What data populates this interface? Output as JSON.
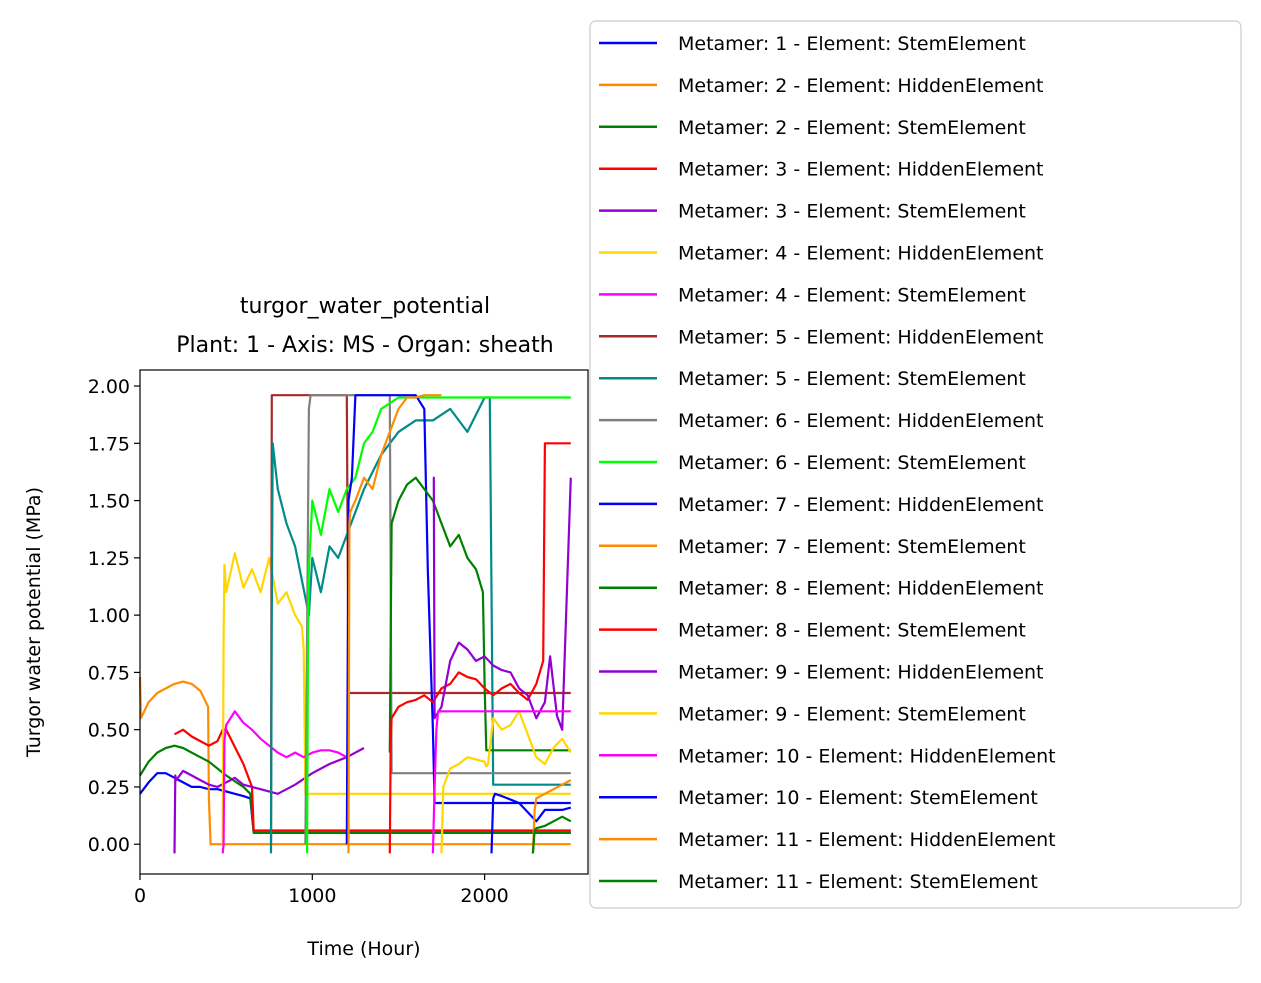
{
  "chart_data": {
    "type": "line",
    "title": "turgor_water_potential",
    "subtitle": "Plant: 1 - Axis: MS - Organ: sheath",
    "xlabel": "Time (Hour)",
    "ylabel": "Turgor water potential (MPa)",
    "xlim": [
      0,
      2600
    ],
    "ylim": [
      -0.13,
      2.07
    ],
    "xticks": [
      "0",
      "1000",
      "2000"
    ],
    "xtick_values": [
      0,
      1000,
      2000
    ],
    "yticks": [
      "0.00",
      "0.25",
      "0.50",
      "0.75",
      "1.00",
      "1.25",
      "1.50",
      "1.75",
      "2.00"
    ],
    "ytick_values": [
      0,
      0.25,
      0.5,
      0.75,
      1.0,
      1.25,
      1.5,
      1.75,
      2.0
    ],
    "grid": false,
    "legend_position": "right-outside",
    "series": [
      {
        "name": "Metamer: 1 - Element: StemElement",
        "color": "#0000ff",
        "x": [
          0,
          50,
          100,
          150,
          200,
          250,
          300,
          350,
          400,
          450,
          500,
          550,
          600,
          640,
          660,
          700,
          2500
        ],
        "y": [
          0.22,
          0.27,
          0.31,
          0.31,
          0.29,
          0.27,
          0.25,
          0.25,
          0.24,
          0.24,
          0.23,
          0.22,
          0.21,
          0.2,
          0.05,
          0.05,
          0.05
        ]
      },
      {
        "name": "Metamer: 2 - Element: HiddenElement",
        "color": "#ff8c00",
        "x": [
          0,
          5,
          50,
          100,
          150,
          200,
          250,
          300,
          350,
          395,
          400,
          410,
          2500
        ],
        "y": [
          0.73,
          0.55,
          0.62,
          0.66,
          0.68,
          0.7,
          0.71,
          0.7,
          0.67,
          0.6,
          0.2,
          0.0,
          0.0
        ]
      },
      {
        "name": "Metamer: 2 - Element: StemElement",
        "color": "#008000",
        "x": [
          0,
          50,
          100,
          150,
          200,
          250,
          300,
          350,
          400,
          500,
          600,
          640,
          660,
          2500
        ],
        "y": [
          0.3,
          0.36,
          0.4,
          0.42,
          0.43,
          0.42,
          0.4,
          0.38,
          0.36,
          0.3,
          0.25,
          0.22,
          0.05,
          0.05
        ]
      },
      {
        "name": "Metamer: 3 - Element: HiddenElement",
        "color": "#ff0000",
        "x": [
          200,
          250,
          300,
          350,
          400,
          450,
          480,
          500,
          600,
          650,
          660,
          700,
          2500
        ],
        "y": [
          0.48,
          0.5,
          0.47,
          0.45,
          0.43,
          0.45,
          0.5,
          0.5,
          0.35,
          0.25,
          0.06,
          0.06,
          0.06
        ]
      },
      {
        "name": "Metamer: 3 - Element: StemElement",
        "color": "#9400d3",
        "x": [
          200,
          205,
          210,
          250,
          300,
          350,
          400,
          450,
          500,
          550,
          600,
          700,
          800,
          900,
          1000,
          1100,
          1200,
          1300
        ],
        "y": [
          -0.04,
          0.3,
          0.28,
          0.32,
          0.3,
          0.28,
          0.26,
          0.25,
          0.27,
          0.29,
          0.26,
          0.24,
          0.22,
          0.26,
          0.31,
          0.35,
          0.38,
          0.42
        ]
      },
      {
        "name": "Metamer: 4 - Element: HiddenElement",
        "color": "#ffd700",
        "x": [
          480,
          485,
          490,
          500,
          550,
          600,
          650,
          700,
          750,
          800,
          850,
          900,
          940,
          950,
          960,
          2500
        ],
        "y": [
          0.0,
          0.9,
          1.22,
          1.1,
          1.27,
          1.12,
          1.2,
          1.1,
          1.25,
          1.05,
          1.1,
          1.0,
          0.95,
          0.85,
          0.22,
          0.22
        ]
      },
      {
        "name": "Metamer: 4 - Element: StemElement",
        "color": "#ff00ff",
        "x": [
          480,
          485,
          490,
          500,
          550,
          600,
          650,
          700,
          750,
          800,
          850,
          900,
          950,
          1000,
          1050,
          1100,
          1150,
          1200
        ],
        "y": [
          -0.04,
          0.0,
          0.45,
          0.52,
          0.58,
          0.53,
          0.5,
          0.46,
          0.43,
          0.4,
          0.38,
          0.4,
          0.38,
          0.4,
          0.41,
          0.41,
          0.4,
          0.38
        ]
      },
      {
        "name": "Metamer: 5 - Element: HiddenElement",
        "color": "#a52a2a",
        "x": [
          760,
          765,
          1200,
          1210,
          1220,
          2500
        ],
        "y": [
          0.0,
          1.96,
          1.96,
          0.66,
          0.66,
          0.66
        ]
      },
      {
        "name": "Metamer: 5 - Element: StemElement",
        "color": "#008b8b",
        "x": [
          760,
          765,
          770,
          800,
          850,
          900,
          940,
          980,
          1000,
          1050,
          1100,
          1150,
          1200,
          1300,
          1400,
          1500,
          1600,
          1700,
          1800,
          1900,
          2000,
          2030,
          2050,
          2500
        ],
        "y": [
          -0.04,
          1.0,
          1.75,
          1.55,
          1.4,
          1.3,
          1.15,
          1.0,
          1.25,
          1.1,
          1.3,
          1.25,
          1.35,
          1.55,
          1.7,
          1.8,
          1.85,
          1.85,
          1.9,
          1.8,
          1.95,
          1.95,
          0.26,
          0.26
        ]
      },
      {
        "name": "Metamer: 6 - Element: HiddenElement",
        "color": "#808080",
        "x": [
          960,
          980,
          990,
          1200,
          1300,
          1400,
          1450,
          1460,
          2500
        ],
        "y": [
          0.0,
          1.9,
          1.96,
          1.96,
          1.96,
          1.96,
          1.96,
          0.31,
          0.31
        ]
      },
      {
        "name": "Metamer: 6 - Element: StemElement",
        "color": "#00ff00",
        "x": [
          970,
          975,
          980,
          1000,
          1050,
          1100,
          1150,
          1200,
          1250,
          1300,
          1350,
          1400,
          1500,
          1600,
          1700,
          1800,
          1900,
          2000,
          2200,
          2500
        ],
        "y": [
          -0.04,
          0.9,
          1.2,
          1.5,
          1.35,
          1.55,
          1.45,
          1.55,
          1.6,
          1.75,
          1.8,
          1.9,
          1.95,
          1.95,
          1.95,
          1.95,
          1.95,
          1.95,
          1.95,
          1.95
        ]
      },
      {
        "name": "Metamer: 7 - Element: HiddenElement",
        "color": "#0000ff",
        "x": [
          1200,
          1210,
          1230,
          1250,
          1300,
          1350,
          1400,
          1450,
          1500,
          1600,
          1650,
          1670,
          1700,
          1710,
          1720,
          2500
        ],
        "y": [
          0.0,
          1.5,
          1.6,
          1.96,
          1.96,
          1.96,
          1.96,
          1.96,
          1.96,
          1.96,
          1.9,
          1.2,
          0.5,
          0.18,
          0.18,
          0.18
        ]
      },
      {
        "name": "Metamer: 7 - Element: StemElement",
        "color": "#ff8c00",
        "x": [
          1210,
          1215,
          1220,
          1250,
          1300,
          1350,
          1400,
          1450,
          1500,
          1550,
          1600,
          1650,
          1700,
          1750
        ],
        "y": [
          -0.04,
          1.4,
          1.45,
          1.5,
          1.6,
          1.55,
          1.7,
          1.8,
          1.9,
          1.95,
          1.95,
          1.96,
          1.96,
          1.96
        ]
      },
      {
        "name": "Metamer: 8 - Element: HiddenElement",
        "color": "#008000",
        "x": [
          1450,
          1460,
          1500,
          1550,
          1600,
          1650,
          1700,
          1750,
          1800,
          1850,
          1900,
          1950,
          1990,
          2000,
          2010,
          2500
        ],
        "y": [
          0.4,
          1.4,
          1.5,
          1.57,
          1.6,
          1.55,
          1.5,
          1.4,
          1.3,
          1.35,
          1.25,
          1.2,
          1.1,
          0.7,
          0.41,
          0.41
        ]
      },
      {
        "name": "Metamer: 8 - Element: StemElement",
        "color": "#ff0000",
        "x": [
          1450,
          1455,
          1460,
          1500,
          1550,
          1600,
          1650,
          1700,
          1750,
          1800,
          1850,
          1900,
          1950,
          2000,
          2050,
          2100,
          2150,
          2200,
          2250,
          2300,
          2340,
          2350,
          2500
        ],
        "y": [
          -0.04,
          0.45,
          0.55,
          0.6,
          0.62,
          0.63,
          0.65,
          0.62,
          0.68,
          0.7,
          0.75,
          0.73,
          0.72,
          0.68,
          0.65,
          0.68,
          0.7,
          0.66,
          0.63,
          0.7,
          0.8,
          1.75,
          1.75
        ]
      },
      {
        "name": "Metamer: 9 - Element: HiddenElement",
        "color": "#9400d3",
        "x": [
          1700,
          1705,
          1710,
          1750,
          1800,
          1850,
          1900,
          1950,
          2000,
          2050,
          2100,
          2150,
          2200,
          2250,
          2300,
          2350,
          2380,
          2420,
          2450,
          2500
        ],
        "y": [
          1.6,
          1.6,
          0.55,
          0.6,
          0.8,
          0.88,
          0.85,
          0.8,
          0.82,
          0.78,
          0.76,
          0.75,
          0.68,
          0.65,
          0.55,
          0.62,
          0.82,
          0.56,
          0.5,
          1.6
        ]
      },
      {
        "name": "Metamer: 9 - Element: StemElement",
        "color": "#ffd700",
        "x": [
          1750,
          1760,
          1800,
          1850,
          1900,
          1950,
          2000,
          2010,
          2020,
          2030,
          2050,
          2100,
          2150,
          2200,
          2250,
          2300,
          2350,
          2400,
          2450,
          2500
        ],
        "y": [
          -0.04,
          0.25,
          0.33,
          0.35,
          0.38,
          0.37,
          0.36,
          0.34,
          0.35,
          0.42,
          0.55,
          0.5,
          0.52,
          0.58,
          0.48,
          0.38,
          0.35,
          0.42,
          0.46,
          0.4
        ]
      },
      {
        "name": "Metamer: 10 - Element: HiddenElement",
        "color": "#ff00ff",
        "x": [
          1700,
          1710,
          1720,
          1730,
          1740,
          2500
        ],
        "y": [
          -0.04,
          0.25,
          0.5,
          0.58,
          0.58,
          0.58
        ]
      },
      {
        "name": "Metamer: 10 - Element: StemElement",
        "color": "#0000ff",
        "x": [
          2040,
          2050,
          2060,
          2100,
          2200,
          2300,
          2350,
          2400,
          2450,
          2500
        ],
        "y": [
          -0.04,
          0.2,
          0.22,
          0.21,
          0.18,
          0.1,
          0.15,
          0.15,
          0.15,
          0.16
        ]
      },
      {
        "name": "Metamer: 11 - Element: HiddenElement",
        "color": "#ff8c00",
        "x": [
          2280,
          2290,
          2300,
          2350,
          2400,
          2450,
          2500
        ],
        "y": [
          -0.04,
          0.15,
          0.2,
          0.22,
          0.24,
          0.26,
          0.28
        ]
      },
      {
        "name": "Metamer: 11 - Element: StemElement",
        "color": "#008000",
        "x": [
          2280,
          2290,
          2300,
          2350,
          2400,
          2450,
          2500
        ],
        "y": [
          -0.04,
          0.06,
          0.07,
          0.08,
          0.1,
          0.12,
          0.1
        ]
      }
    ]
  }
}
